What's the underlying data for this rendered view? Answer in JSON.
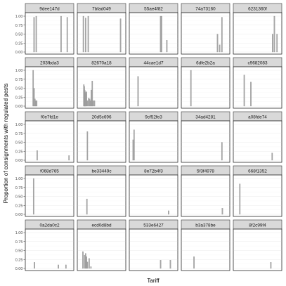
{
  "chart_data": {
    "type": "bar",
    "xlabel": "Tariff",
    "ylabel": "Proportion of consignments with regulated pests",
    "ylim": [
      0,
      1
    ],
    "y_ticks": [
      0.0,
      0.25,
      0.5,
      0.75,
      1.0
    ],
    "y_tick_labels": [
      "0.00",
      "0.25",
      "0.50",
      "0.75",
      "1.00"
    ],
    "x_tick_labels": [],
    "x_range": [
      0,
      100
    ],
    "grid": true,
    "facets": [
      {
        "label": "9dee147d",
        "bars": [
          {
            "x": 15,
            "y": 0.97
          },
          {
            "x": 20,
            "y": 1.0
          },
          {
            "x": 76,
            "y": 1.0
          },
          {
            "x": 90,
            "y": 0.97
          }
        ]
      },
      {
        "label": "7bfad049",
        "bars": [
          {
            "x": 9,
            "y": 1.0
          },
          {
            "x": 14,
            "y": 0.95
          },
          {
            "x": 20,
            "y": 1.0
          },
          {
            "x": 93,
            "y": 0.93
          }
        ]
      },
      {
        "label": "55ae4f82",
        "bars": [
          {
            "x": 66,
            "y": 1.0
          },
          {
            "x": 68,
            "y": 1.0
          },
          {
            "x": 80,
            "y": 0.33
          }
        ]
      },
      {
        "label": "74a73160",
        "bars": [
          {
            "x": 77,
            "y": 0.5
          },
          {
            "x": 82,
            "y": 0.2
          },
          {
            "x": 87,
            "y": 0.97
          }
        ]
      },
      {
        "label": "6231360f",
        "bars": [
          {
            "x": 84,
            "y": 0.5
          },
          {
            "x": 88,
            "y": 1.0
          },
          {
            "x": 94,
            "y": 0.5
          }
        ]
      },
      {
        "label": "203fbda3",
        "bars": [
          {
            "x": 13,
            "y": 1.0
          },
          {
            "x": 15,
            "y": 0.5
          },
          {
            "x": 17,
            "y": 0.2
          },
          {
            "x": 19,
            "y": 0.15
          },
          {
            "x": 21,
            "y": 0.15
          }
        ]
      },
      {
        "label": "82670a18",
        "bars": [
          {
            "x": 10,
            "y": 0.6
          },
          {
            "x": 11,
            "y": 0.55
          },
          {
            "x": 12,
            "y": 0.45
          },
          {
            "x": 13,
            "y": 0.4
          },
          {
            "x": 14,
            "y": 0.35
          },
          {
            "x": 16,
            "y": 0.4
          },
          {
            "x": 18,
            "y": 0.15
          },
          {
            "x": 21,
            "y": 0.22
          },
          {
            "x": 23,
            "y": 0.2
          },
          {
            "x": 25,
            "y": 0.15
          },
          {
            "x": 27,
            "y": 0.45
          },
          {
            "x": 29,
            "y": 0.7
          },
          {
            "x": 31,
            "y": 0.15
          },
          {
            "x": 34,
            "y": 0.15
          }
        ]
      },
      {
        "label": "44cae1d7",
        "bars": [
          {
            "x": 15,
            "y": 0.83
          }
        ]
      },
      {
        "label": "6dfe2b2a",
        "bars": [
          {
            "x": 17,
            "y": 1.0
          }
        ]
      },
      {
        "label": "c9682083",
        "bars": [
          {
            "x": 20,
            "y": 0.87
          },
          {
            "x": 35,
            "y": 0.67
          }
        ]
      },
      {
        "label": "f0e7fd1e",
        "bars": [
          {
            "x": 22,
            "y": 0.27
          },
          {
            "x": 94,
            "y": 0.13
          }
        ]
      },
      {
        "label": "20d5c696",
        "bars": [
          {
            "x": 18,
            "y": 0.8
          }
        ]
      },
      {
        "label": "9cf52fe3",
        "bars": [
          {
            "x": 4,
            "y": 0.57
          },
          {
            "x": 6,
            "y": 0.85
          }
        ]
      },
      {
        "label": "34ad4281",
        "bars": [
          {
            "x": 87,
            "y": 0.5
          }
        ]
      },
      {
        "label": "a08fde74",
        "bars": [
          {
            "x": 83,
            "y": 0.2
          }
        ]
      },
      {
        "label": "f068d765",
        "bars": [
          {
            "x": 14,
            "y": 1.0
          }
        ]
      },
      {
        "label": "be33449c",
        "bars": [
          {
            "x": 17,
            "y": 0.43
          }
        ]
      },
      {
        "label": "8e72b4f3",
        "bars": [
          {
            "x": 84,
            "y": 0.1
          }
        ]
      },
      {
        "label": "5f3f4978",
        "bars": [
          {
            "x": 88,
            "y": 0.17
          }
        ]
      },
      {
        "label": "668f1352",
        "bars": [
          {
            "x": 10,
            "y": 0.85
          }
        ]
      },
      {
        "label": "0a2da0c2",
        "bars": [
          {
            "x": 16,
            "y": 0.17
          },
          {
            "x": 70,
            "y": 0.1
          },
          {
            "x": 87,
            "y": 0.1
          }
        ]
      },
      {
        "label": "ecd0d8bd",
        "bars": [
          {
            "x": 8,
            "y": 0.47
          },
          {
            "x": 12,
            "y": 0.37
          },
          {
            "x": 14,
            "y": 0.42
          },
          {
            "x": 16,
            "y": 0.33
          },
          {
            "x": 18,
            "y": 0.18
          },
          {
            "x": 22,
            "y": 0.28
          },
          {
            "x": 26,
            "y": 0.05
          }
        ]
      },
      {
        "label": "533e6427",
        "bars": [
          {
            "x": 66,
            "y": 0.23
          },
          {
            "x": 88,
            "y": 0.23
          }
        ]
      },
      {
        "label": "b3a378be",
        "bars": [
          {
            "x": 24,
            "y": 0.33
          }
        ]
      },
      {
        "label": "8f2c99f4",
        "bars": [
          {
            "x": 80,
            "y": 0.17
          }
        ]
      }
    ]
  }
}
